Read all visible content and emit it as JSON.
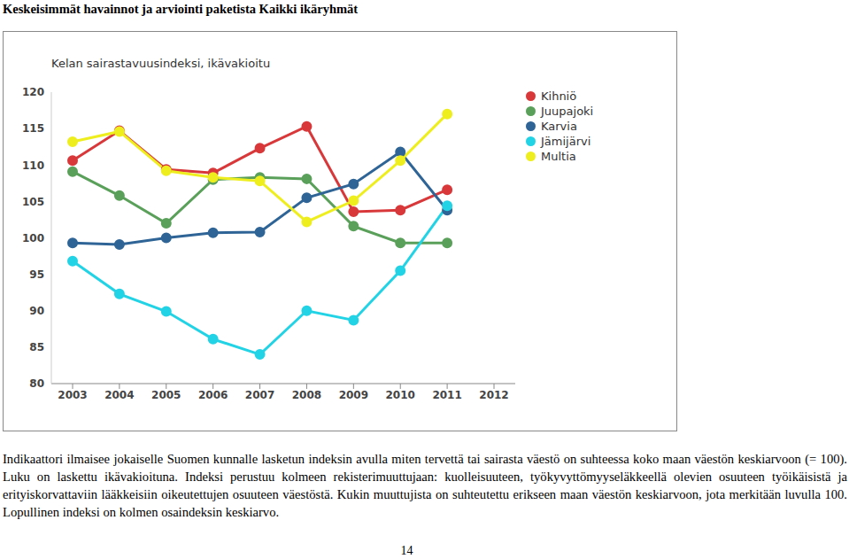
{
  "header": "Keskeisimmät havainnot ja arviointi paketista Kaikki ikäryhmät",
  "chart_data": {
    "type": "line",
    "title": "Kelan sairastavuusindeksi, ikävakioitu",
    "categories": [
      "2003",
      "2004",
      "2005",
      "2006",
      "2007",
      "2008",
      "2009",
      "2010",
      "2011",
      "2012"
    ],
    "series": [
      {
        "name": "Kihniö",
        "color": "#d9383a",
        "values": [
          110.6,
          114.7,
          109.4,
          108.9,
          112.3,
          115.3,
          103.6,
          103.8,
          106.6,
          null
        ]
      },
      {
        "name": "Juupajoki",
        "color": "#5aa05a",
        "values": [
          109.1,
          105.8,
          102.0,
          108.0,
          108.3,
          108.1,
          101.6,
          99.3,
          99.3,
          null
        ]
      },
      {
        "name": "Karvia",
        "color": "#2e6496",
        "values": [
          99.3,
          99.1,
          100.0,
          100.7,
          100.8,
          105.5,
          107.4,
          111.8,
          103.8,
          null
        ]
      },
      {
        "name": "Jämijärvi",
        "color": "#22d3e6",
        "values": [
          96.8,
          92.3,
          89.9,
          86.1,
          84.0,
          90.0,
          88.7,
          95.5,
          104.4,
          null
        ]
      },
      {
        "name": "Multia",
        "color": "#eeee1e",
        "values": [
          113.2,
          114.6,
          109.2,
          108.3,
          107.8,
          102.2,
          105.1,
          110.6,
          117.0,
          null
        ]
      }
    ],
    "ylim": [
      80,
      120
    ],
    "yticks": [
      80,
      85,
      90,
      95,
      100,
      105,
      110,
      115,
      120
    ],
    "grid": false,
    "legend": "right",
    "marker": "circle"
  },
  "text": "Indikaattori ilmaisee jokaiselle Suomen kunnalle lasketun indeksin avulla miten tervettä tai sairasta väestö on suhteessa koko maan väestön keskiarvoon (= 100). Luku on laskettu ikävakioituna. Indeksi perustuu kolmeen rekisterimuuttujaan: kuolleisuuteen, työkyvyttömyyseläkkeellä olevien osuuteen työikäisistä ja erityiskorvattaviin lääkkeisiin oikeutettujen osuuteen väestöstä. Kukin muuttujista on suhteutettu erikseen maan väestön keskiarvoon, jota merkitään luvulla 100. Lopullinen indeksi on kolmen osaindeksin keskiarvo.",
  "page_number": 14
}
